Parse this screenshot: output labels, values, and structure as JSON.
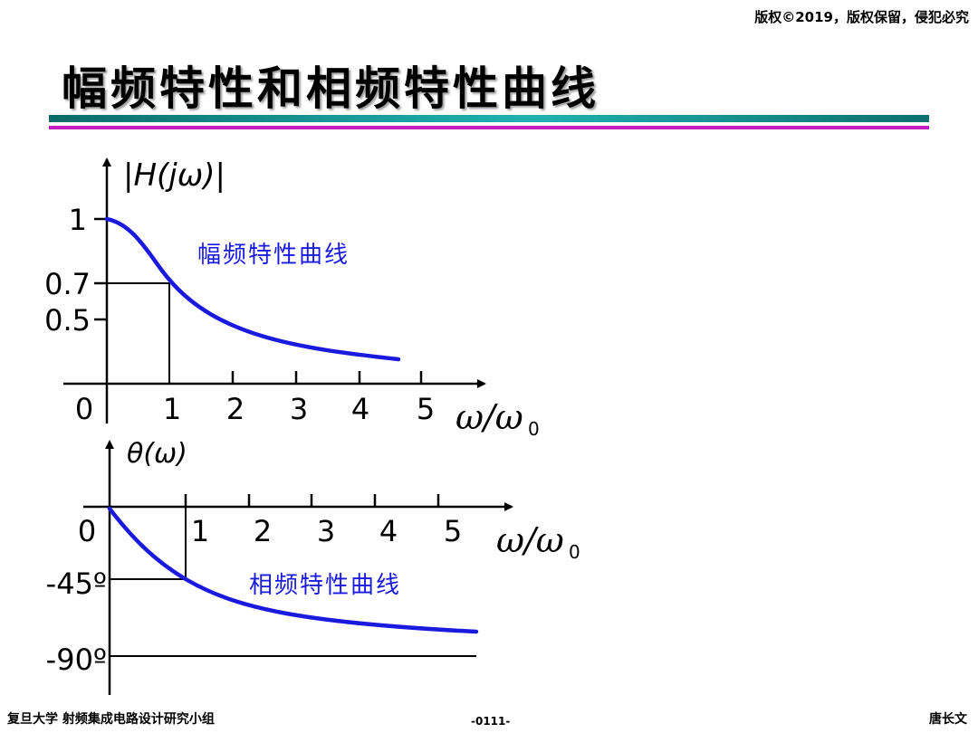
{
  "header": {
    "copyright": "版权©2019，版权保留，侵犯必究",
    "title": "幅频特性和相频特性曲线"
  },
  "amp_plot": {
    "ylabel": "|H(jω)|",
    "yticks": [
      "1",
      "0.7",
      "0.5"
    ],
    "xticks": [
      "0",
      "1",
      "2",
      "3",
      "4",
      "5"
    ],
    "xlabel_main": "ω/ω",
    "xlabel_sub": "0",
    "curve_label": "幅频特性曲线"
  },
  "phase_plot": {
    "ylabel": "θ(ω)",
    "yticks": [
      "-45º",
      "-90º"
    ],
    "xticks": [
      "0",
      "1",
      "2",
      "3",
      "4",
      "5"
    ],
    "xlabel_main": "ω/ω",
    "xlabel_sub": "0",
    "curve_label": "相频特性曲线"
  },
  "colors": {
    "curve": "#1a1adf",
    "label": "#1a1adf",
    "axis": "#000000"
  },
  "footer": {
    "left": "复旦大学   射频集成电路设计研究小组",
    "center": "-0111-",
    "right": "唐长文"
  }
}
